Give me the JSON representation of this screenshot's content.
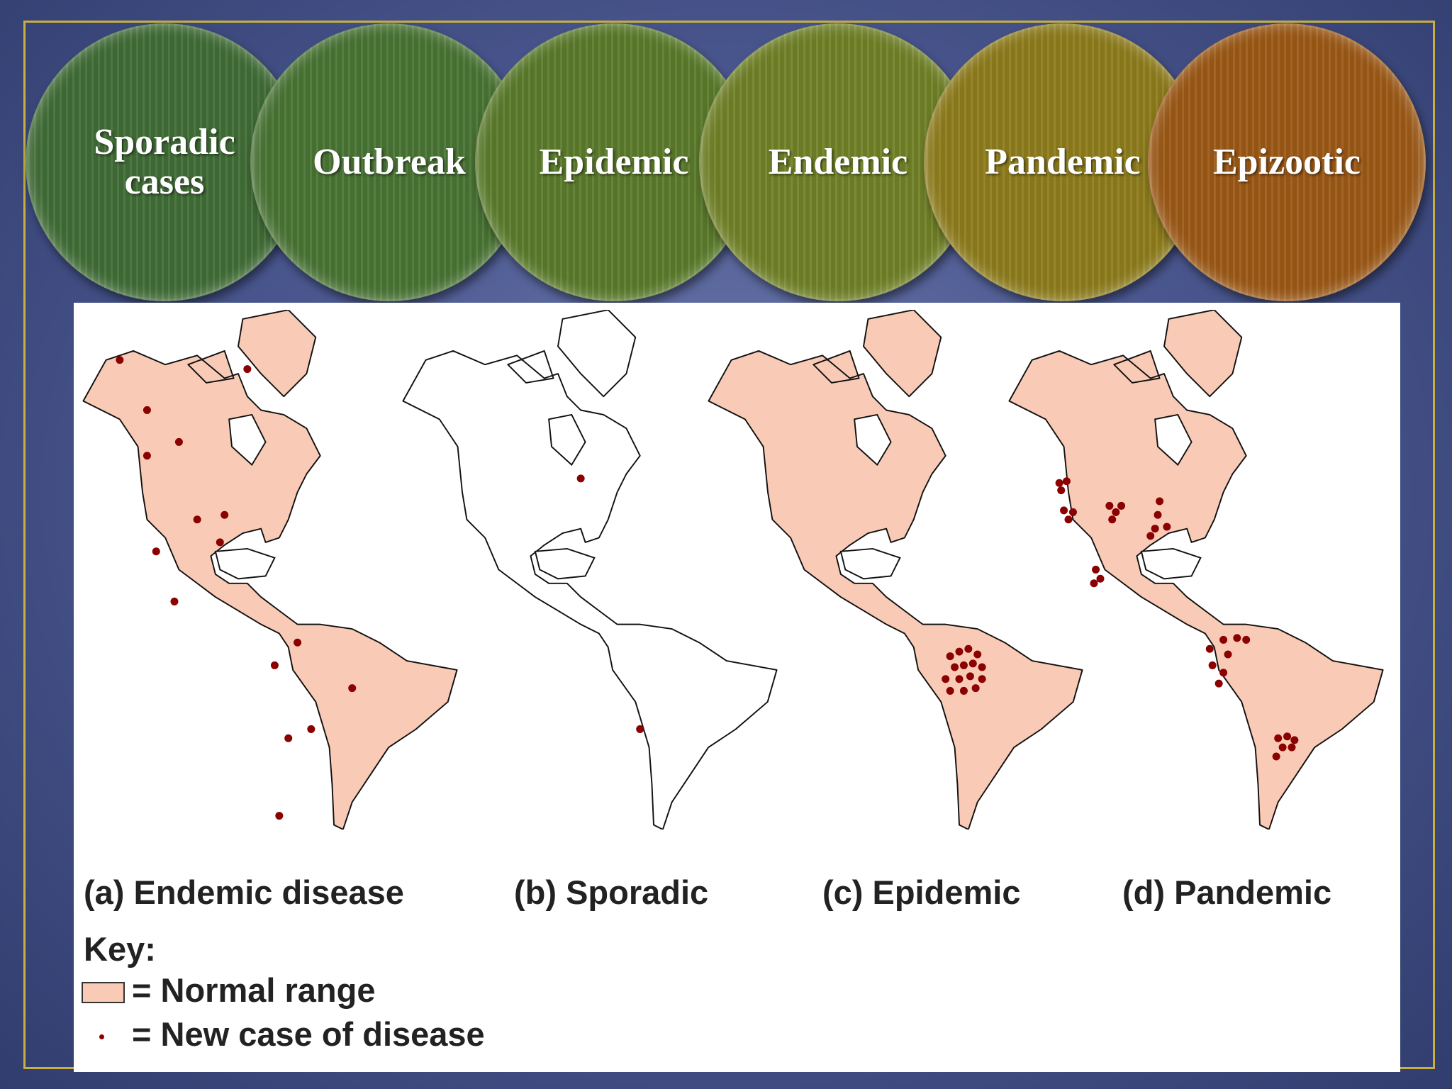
{
  "stages": [
    "Sporadic cases",
    "Outbreak",
    "Epidemic",
    "Endemic",
    "Pandemic",
    "Epizootic"
  ],
  "panels": [
    "(a) Endemic disease",
    "(b) Sporadic",
    "(c) Epidemic",
    "(d) Pandemic"
  ],
  "key": {
    "title": "Key:",
    "items": [
      "= Normal range",
      "= New case of disease"
    ]
  }
}
